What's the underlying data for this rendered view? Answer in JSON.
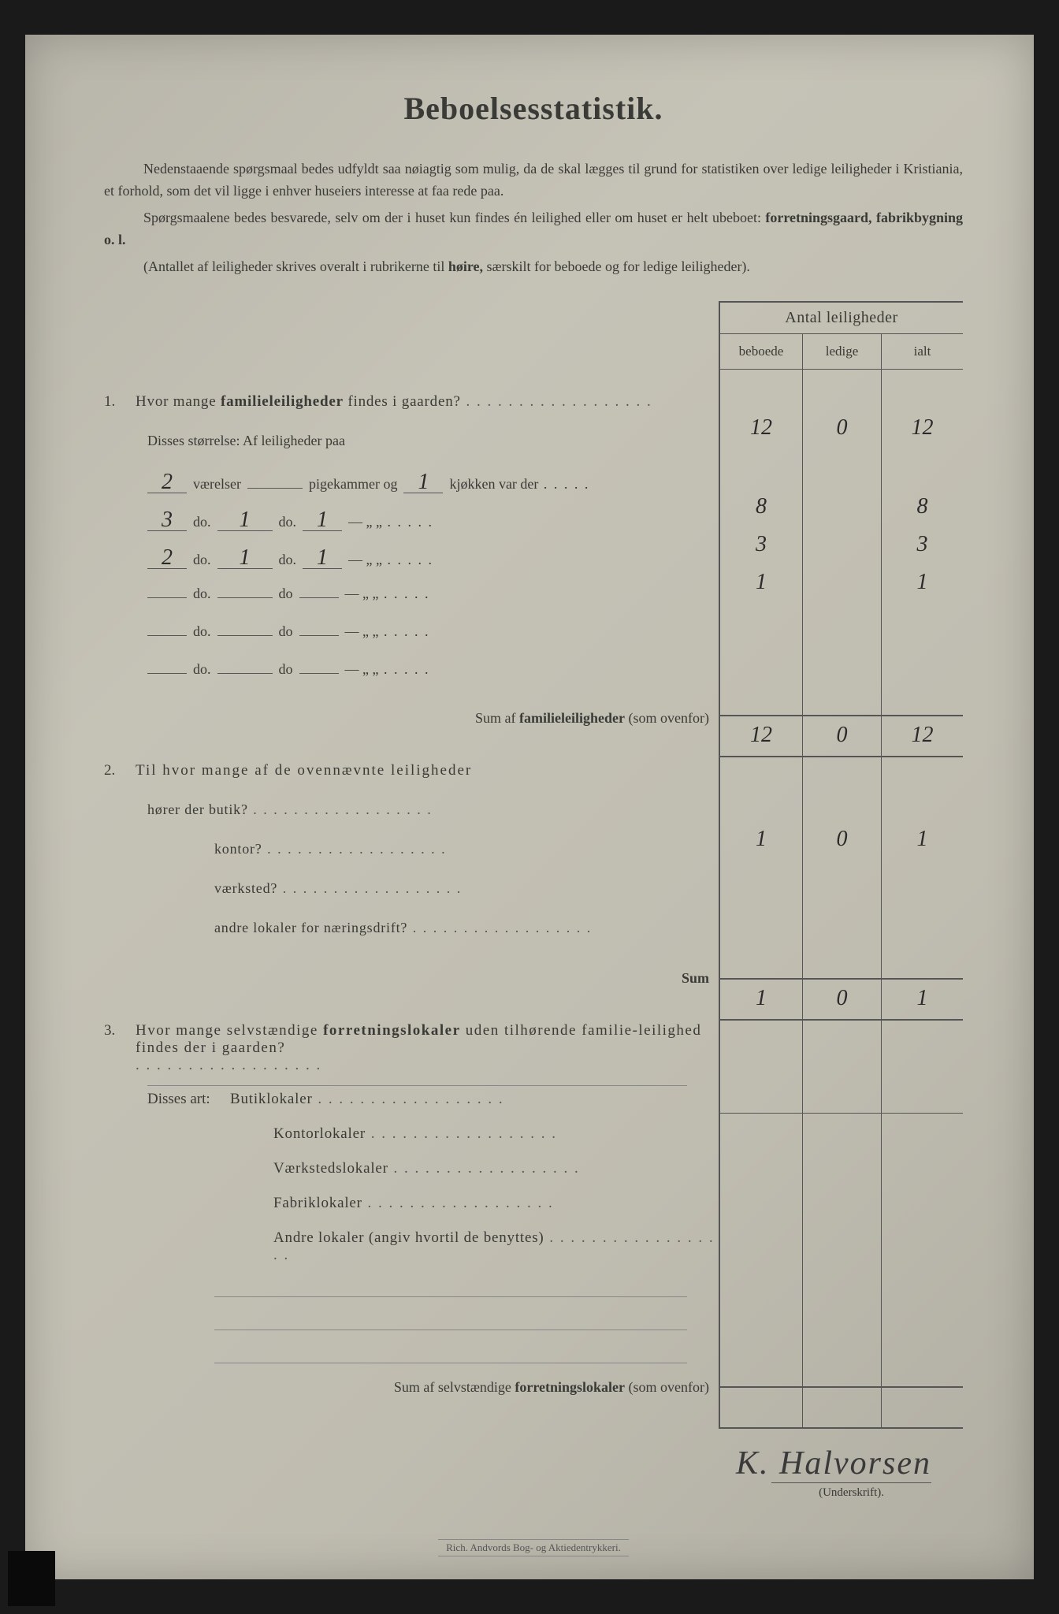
{
  "title": "Beboelsesstatistik.",
  "intro": {
    "p1a": "Nedenstaaende spørgsmaal bedes udfyldt saa nøiagtig som mulig, da de skal lægges til grund for statistiken over  ledige leiligheder i Kristiania, et forhold, som det vil ligge i enhver huseiers interesse at faa rede paa.",
    "p2a": "Spørgsmaalene bedes besvarede, selv om der i huset kun findes én leilighed eller om huset er helt ubeboet: ",
    "p2b": "forretningsgaard, fabrikbygning o. l.",
    "p3a": "(Antallet af leiligheder skrives overalt i rubrikerne til ",
    "p3b": "høire,",
    "p3c": " særskilt for beboede og for ledige leiligheder)."
  },
  "headers": {
    "antal": "Antal leiligheder",
    "beboede": "beboede",
    "ledige": "ledige",
    "ialt": "ialt"
  },
  "q1": {
    "num": "1.",
    "text_a": "Hvor mange ",
    "text_b": "familieleiligheder",
    "text_c": " findes i gaarden?",
    "disses": "Disses størrelse:   Af leiligheder paa",
    "vals": {
      "beboede": "12",
      "ledige": "0",
      "ialt": "12"
    },
    "rows": [
      {
        "v": "2",
        "p": "",
        "k": "1",
        "beboede": "8",
        "ledige": "",
        "ialt": "8",
        "pre": "værelser",
        "mid": "pigekammer og",
        "post": "kjøkken var der"
      },
      {
        "v": "3",
        "p": "1",
        "k": "1",
        "beboede": "3",
        "ledige": "",
        "ialt": "3",
        "pre": "do.",
        "mid": "do.",
        "post": "—    „  „"
      },
      {
        "v": "2",
        "p": "1",
        "k": "1",
        "beboede": "1",
        "ledige": "",
        "ialt": "1",
        "pre": "do.",
        "mid": "do.",
        "post": "—    „  „"
      },
      {
        "v": "",
        "p": "",
        "k": "",
        "beboede": "",
        "ledige": "",
        "ialt": "",
        "pre": "do.",
        "mid": "do",
        "post": "—    „  „"
      },
      {
        "v": "",
        "p": "",
        "k": "",
        "beboede": "",
        "ledige": "",
        "ialt": "",
        "pre": "do.",
        "mid": "do",
        "post": "—    „  „"
      },
      {
        "v": "",
        "p": "",
        "k": "",
        "beboede": "",
        "ledige": "",
        "ialt": "",
        "pre": "do.",
        "mid": "do",
        "post": "—    „  „"
      }
    ],
    "sum_a": "Sum af ",
    "sum_b": "familieleiligheder",
    "sum_c": " (som ovenfor)",
    "sum_vals": {
      "beboede": "12",
      "ledige": "0",
      "ialt": "12"
    }
  },
  "q2": {
    "num": "2.",
    "text": "Til hvor mange af de ovennævnte leiligheder",
    "rows": [
      {
        "label": "hører der butik?",
        "beboede": "1",
        "ledige": "0",
        "ialt": "1"
      },
      {
        "label": "kontor?",
        "beboede": "",
        "ledige": "",
        "ialt": ""
      },
      {
        "label": "værksted?",
        "beboede": "",
        "ledige": "",
        "ialt": ""
      },
      {
        "label": "andre lokaler for næringsdrift?",
        "beboede": "",
        "ledige": "",
        "ialt": ""
      }
    ],
    "sum": "Sum",
    "sum_vals": {
      "beboede": "1",
      "ledige": "0",
      "ialt": "1"
    }
  },
  "q3": {
    "num": "3.",
    "text_a": "Hvor mange selvstændige ",
    "text_b": "forretningslokaler",
    "text_c": " uden tilhørende familie-leilighed findes der i gaarden?",
    "disses": "Disses art:",
    "rows": [
      {
        "label": "Butiklokaler"
      },
      {
        "label": "Kontorlokaler"
      },
      {
        "label": "Værkstedslokaler"
      },
      {
        "label": "Fabriklokaler"
      },
      {
        "label": "Andre lokaler (angiv hvortil de benyttes)"
      }
    ],
    "sum_a": "Sum af selvstændige ",
    "sum_b": "forretningslokaler",
    "sum_c": " (som ovenfor)"
  },
  "signature": "K. Halvorsen",
  "sig_label": "(Underskrift).",
  "printer": "Rich. Andvords Bog- og Aktiedentrykkeri."
}
